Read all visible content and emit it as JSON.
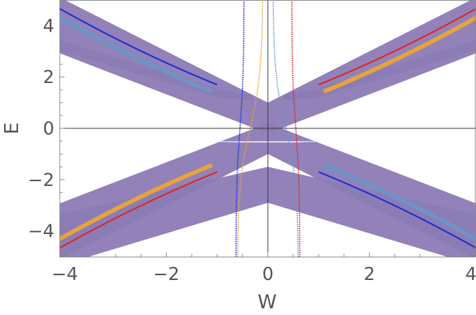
{
  "chart_data": {
    "type": "scatter",
    "title": "",
    "xlabel": "W",
    "ylabel": "E",
    "xlim": [
      -4.1,
      4.1
    ],
    "ylim": [
      -5,
      5
    ],
    "xticks": [
      -4,
      -2,
      0,
      2,
      4
    ],
    "yticks": [
      -4,
      -2,
      0,
      2,
      4
    ],
    "xtick_labels": [
      "−4",
      "−2",
      "0",
      "2",
      "4"
    ],
    "ytick_labels": [
      "−4",
      "−2",
      "0",
      "2",
      "4"
    ],
    "grid": false,
    "legend": "none",
    "colors": {
      "bulk": "#8c7bb5",
      "edge_red": "#e0261f",
      "edge_orange": "#e8a43a",
      "edge_blue": "#1f2fd1",
      "edge_lightblue": "#6d94c6",
      "axis": "#333333",
      "frame": "#888888"
    },
    "series": [
      {
        "name": "bulk bands",
        "color": "#8c7bb5",
        "description_points": {
          "upper_right_band_edges": [
            [
              0,
              1.0
            ],
            [
              4,
              5.0
            ],
            [
              0,
              -0.2
            ],
            [
              4,
              3.0
            ]
          ],
          "lower_right_band_edges": [
            [
              0,
              -1.0
            ],
            [
              4,
              -5.0
            ],
            [
              0,
              0.2
            ],
            [
              4,
              -3.0
            ]
          ],
          "outer_band_top": [
            [
              0,
              -1.5
            ],
            [
              4,
              -3.3
            ]
          ],
          "outer_band_bottom": [
            [
              0,
              -2.9
            ],
            [
              4,
              -5.3
            ]
          ]
        }
      },
      {
        "name": "edge state (red)",
        "color": "#e0261f",
        "x": [
          -4,
          -3,
          -2,
          -1.3,
          -1.0,
          1.0,
          1.3,
          2,
          3,
          4
        ],
        "y": [
          -4.1,
          -3.3,
          -2.5,
          -1.75,
          -1.7,
          1.7,
          1.75,
          2.5,
          3.3,
          4.1
        ]
      },
      {
        "name": "edge state (blue)",
        "color": "#1f2fd1",
        "x": [
          -4,
          -3,
          -2,
          -1.3,
          -1.0,
          1.0,
          1.3,
          2,
          3,
          4
        ],
        "y": [
          4.1,
          3.3,
          2.5,
          1.75,
          1.7,
          -1.7,
          -1.75,
          -2.5,
          -3.3,
          -4.1
        ]
      }
    ]
  }
}
